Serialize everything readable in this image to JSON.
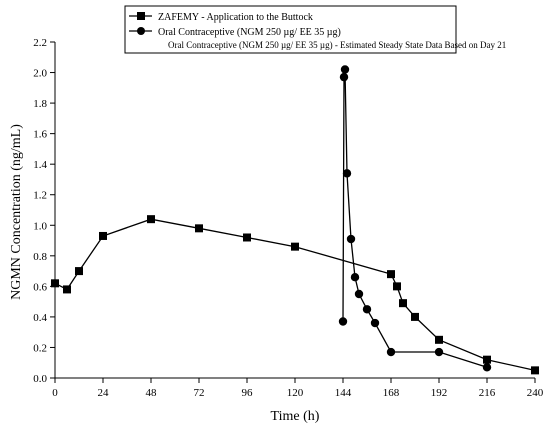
{
  "chart_data": {
    "type": "line",
    "xlabel": "Time (h)",
    "ylabel": "NGMN Concentration (ng/mL)",
    "xlim": [
      0,
      240
    ],
    "ylim": [
      0,
      2.2
    ],
    "x_ticks": [
      "0",
      "24",
      "48",
      "72",
      "96",
      "120",
      "144",
      "168",
      "192",
      "216",
      "240"
    ],
    "y_ticks": [
      "0.0",
      "0.2",
      "0.4",
      "0.6",
      "0.8",
      "1.0",
      "1.2",
      "1.4",
      "1.6",
      "1.8",
      "2.0",
      "2.2"
    ],
    "grid": false,
    "legend_position": "top-right",
    "series": [
      {
        "name": "ZAFEMY - Application to the Buttock",
        "marker": "square",
        "color": "#000000",
        "x": [
          0,
          6,
          12,
          24,
          48,
          72,
          96,
          120,
          168,
          171,
          174,
          180,
          192,
          216,
          240
        ],
        "y": [
          0.62,
          0.58,
          0.7,
          0.93,
          1.04,
          0.98,
          0.92,
          0.86,
          0.68,
          0.6,
          0.49,
          0.4,
          0.25,
          0.12,
          0.05
        ]
      },
      {
        "name": "Oral Contraceptive (NGM 250 µg/ EE 35 µg)",
        "marker": "circle",
        "color": "#000000",
        "x": [
          144,
          144.5,
          145,
          146,
          148,
          150,
          152,
          156,
          160,
          168,
          192,
          216
        ],
        "y": [
          0.37,
          1.97,
          2.02,
          1.34,
          0.91,
          0.66,
          0.55,
          0.45,
          0.36,
          0.17,
          0.17,
          0.07
        ]
      }
    ],
    "legend_note": "Oral Contraceptive (NGM 250 µg/ EE 35 µg) - Estimated Steady State Data Based on Day 21"
  }
}
